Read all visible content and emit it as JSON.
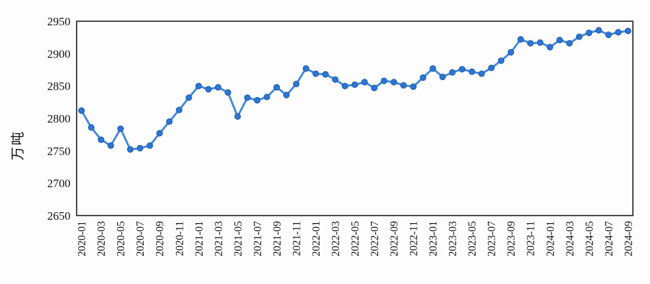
{
  "chart": {
    "y_axis_title": "万吨",
    "line_color": "#3b82d9",
    "marker_fill": "#2d76d3",
    "marker_stroke": "#1e5cad",
    "plot_border_color": "#1a1a1a",
    "background": "#fdfdfd"
  },
  "chart_data": {
    "type": "line",
    "title": "",
    "xlabel": "",
    "ylabel": "万吨",
    "ylim": [
      2650,
      2950
    ],
    "y_ticks": [
      2650,
      2700,
      2750,
      2800,
      2850,
      2900,
      2950
    ],
    "grid": false,
    "legend": false,
    "x": [
      "2020-01",
      "2020-02",
      "2020-03",
      "2020-04",
      "2020-05",
      "2020-06",
      "2020-07",
      "2020-08",
      "2020-09",
      "2020-10",
      "2020-11",
      "2020-12",
      "2021-01",
      "2021-02",
      "2021-03",
      "2021-04",
      "2021-05",
      "2021-06",
      "2021-07",
      "2021-08",
      "2021-09",
      "2021-10",
      "2021-11",
      "2021-12",
      "2022-01",
      "2022-02",
      "2022-03",
      "2022-04",
      "2022-05",
      "2022-06",
      "2022-07",
      "2022-08",
      "2022-09",
      "2022-10",
      "2022-11",
      "2022-12",
      "2023-01",
      "2023-02",
      "2023-03",
      "2023-04",
      "2023-05",
      "2023-06",
      "2023-07",
      "2023-08",
      "2023-09",
      "2023-10",
      "2023-11",
      "2023-12",
      "2024-01",
      "2024-02",
      "2024-03",
      "2024-04",
      "2024-05",
      "2024-06",
      "2024-07",
      "2024-08",
      "2024-09"
    ],
    "x_tick_labels": [
      "2020-01",
      "2020-03",
      "2020-05",
      "2020-07",
      "2020-09",
      "2020-11",
      "2021-01",
      "2021-03",
      "2021-05",
      "2021-07",
      "2021-09",
      "2021-11",
      "2022-01",
      "2022-03",
      "2022-05",
      "2022-07",
      "2022-09",
      "2022-11",
      "2023-01",
      "2023-03",
      "2023-05",
      "2023-07",
      "2023-09",
      "2023-11",
      "2024-01",
      "2024-03",
      "2024-05",
      "2024-07",
      "2024-09"
    ],
    "values": [
      2812,
      2786,
      2767,
      2758,
      2784,
      2752,
      2754,
      2758,
      2777,
      2795,
      2813,
      2832,
      2850,
      2845,
      2848,
      2840,
      2803,
      2832,
      2828,
      2833,
      2848,
      2836,
      2853,
      2877,
      2869,
      2868,
      2860,
      2850,
      2852,
      2856,
      2847,
      2858,
      2856,
      2851,
      2849,
      2863,
      2877,
      2864,
      2871,
      2876,
      2872,
      2869,
      2878,
      2889,
      2902,
      2922,
      2916,
      2917,
      2910,
      2921,
      2916,
      2926,
      2932,
      2936,
      2929,
      2933,
      2935
    ]
  }
}
